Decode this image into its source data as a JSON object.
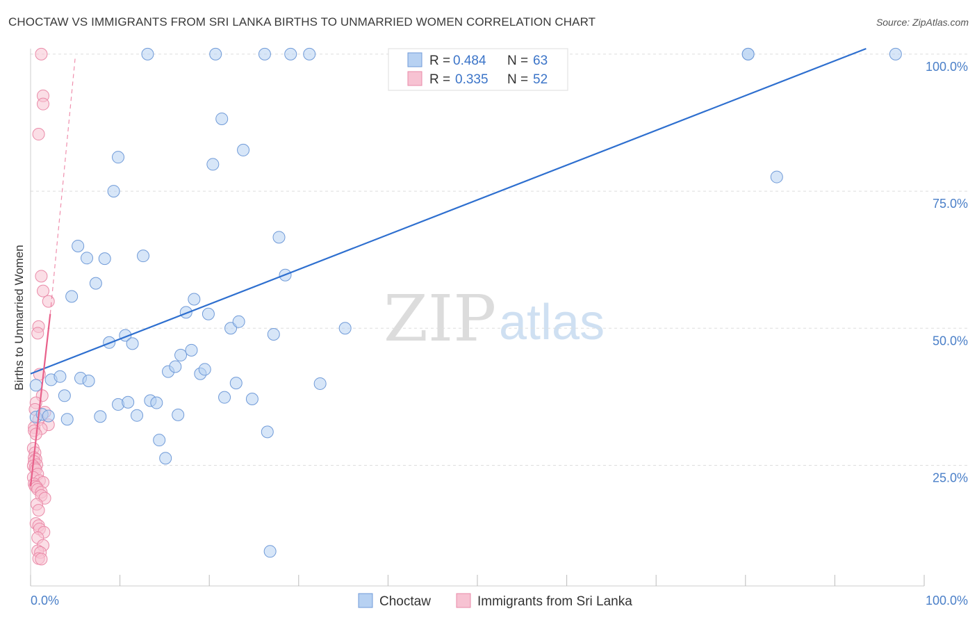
{
  "header": {
    "title": "CHOCTAW VS IMMIGRANTS FROM SRI LANKA BIRTHS TO UNMARRIED WOMEN CORRELATION CHART",
    "source": "Source: ZipAtlas.com"
  },
  "watermark": {
    "zip": "ZIP",
    "atlas": "atlas"
  },
  "colors": {
    "blue_fill": "#b7d1f2",
    "blue_stroke": "#6f9ad8",
    "blue_line": "#2e6fcf",
    "pink_fill": "#f7c2d2",
    "pink_stroke": "#ea8aa8",
    "pink_line": "#e8608a",
    "grid": "#dddddd",
    "tick_text": "#4a7fc8"
  },
  "legend": {
    "rows": [
      {
        "r_label": "R =",
        "r_value": "0.484",
        "n_label": "N =",
        "n_value": "63"
      },
      {
        "r_label": "R =",
        "r_value": "0.335",
        "n_label": "N =",
        "n_value": "52"
      }
    ]
  },
  "chart_data": {
    "type": "scatter",
    "title": "CHOCTAW VS IMMIGRANTS FROM SRI LANKA BIRTHS TO UNMARRIED WOMEN CORRELATION CHART",
    "xlabel": "",
    "ylabel": "Births to Unmarried Women",
    "xlim": [
      0,
      100
    ],
    "ylim": [
      3,
      101
    ],
    "x_tick_labels": [
      "0.0%",
      "100.0%"
    ],
    "y_ticks": [
      25,
      50,
      75,
      100
    ],
    "y_tick_labels": [
      "25.0%",
      "50.0%",
      "75.0%",
      "100.0%"
    ],
    "grid": true,
    "series": [
      {
        "name": "Choctaw",
        "color": "blue",
        "r": 0.484,
        "n": 63,
        "trend": {
          "x": [
            0,
            93.5
          ],
          "y": [
            41.7,
            101
          ]
        },
        "points": [
          [
            0.6,
            33.8
          ],
          [
            0.6,
            39.6
          ],
          [
            1.3,
            34.3
          ],
          [
            2.0,
            34.0
          ],
          [
            2.3,
            40.6
          ],
          [
            3.3,
            41.2
          ],
          [
            3.8,
            37.7
          ],
          [
            4.1,
            33.4
          ],
          [
            4.6,
            55.8
          ],
          [
            5.3,
            65.0
          ],
          [
            5.6,
            40.9
          ],
          [
            6.5,
            40.4
          ],
          [
            6.3,
            62.8
          ],
          [
            7.3,
            58.2
          ],
          [
            7.8,
            33.9
          ],
          [
            8.3,
            62.7
          ],
          [
            8.8,
            47.4
          ],
          [
            9.3,
            75.0
          ],
          [
            9.8,
            81.2
          ],
          [
            9.8,
            36.1
          ],
          [
            10.6,
            48.7
          ],
          [
            10.9,
            36.5
          ],
          [
            11.4,
            47.2
          ],
          [
            11.9,
            34.1
          ],
          [
            12.6,
            63.2
          ],
          [
            13.1,
            100.0
          ],
          [
            13.4,
            36.8
          ],
          [
            14.1,
            36.4
          ],
          [
            14.4,
            29.6
          ],
          [
            15.1,
            26.3
          ],
          [
            15.4,
            42.1
          ],
          [
            16.2,
            43.0
          ],
          [
            16.5,
            34.2
          ],
          [
            16.8,
            45.1
          ],
          [
            17.4,
            52.9
          ],
          [
            18.0,
            46.0
          ],
          [
            18.3,
            55.3
          ],
          [
            19.0,
            41.7
          ],
          [
            19.5,
            42.5
          ],
          [
            19.9,
            52.6
          ],
          [
            20.4,
            79.9
          ],
          [
            20.7,
            100.0
          ],
          [
            21.4,
            88.2
          ],
          [
            21.7,
            37.4
          ],
          [
            22.4,
            50.0
          ],
          [
            23.0,
            40.0
          ],
          [
            23.3,
            51.2
          ],
          [
            23.8,
            82.5
          ],
          [
            24.8,
            37.1
          ],
          [
            26.2,
            100.0
          ],
          [
            26.5,
            31.1
          ],
          [
            26.8,
            9.3
          ],
          [
            27.2,
            48.9
          ],
          [
            27.8,
            66.6
          ],
          [
            28.5,
            59.7
          ],
          [
            29.1,
            100.0
          ],
          [
            31.2,
            100.0
          ],
          [
            32.4,
            39.9
          ],
          [
            35.2,
            50.0
          ],
          [
            80.3,
            100.0
          ],
          [
            80.3,
            100.0
          ],
          [
            83.5,
            77.6
          ],
          [
            96.8,
            100.0
          ]
        ]
      },
      {
        "name": "Immigrants from Sri Lanka",
        "color": "pink",
        "r": 0.335,
        "n": 52,
        "trend": {
          "x": [
            0.0,
            2.2
          ],
          "y": [
            21.2,
            52.6
          ]
        },
        "trend_dashed": {
          "x": [
            2.2,
            5.0
          ],
          "y": [
            52.6,
            99.5
          ]
        },
        "points": [
          [
            1.2,
            100.0
          ],
          [
            1.4,
            92.4
          ],
          [
            1.4,
            90.9
          ],
          [
            0.9,
            85.4
          ],
          [
            1.2,
            59.5
          ],
          [
            1.4,
            56.8
          ],
          [
            2.0,
            54.9
          ],
          [
            0.9,
            50.3
          ],
          [
            0.8,
            49.1
          ],
          [
            1.0,
            41.6
          ],
          [
            1.3,
            37.7
          ],
          [
            0.6,
            36.4
          ],
          [
            0.5,
            35.2
          ],
          [
            1.6,
            34.7
          ],
          [
            0.9,
            33.3
          ],
          [
            2.0,
            32.4
          ],
          [
            0.4,
            31.9
          ],
          [
            1.2,
            31.7
          ],
          [
            0.4,
            31.3
          ],
          [
            0.6,
            30.7
          ],
          [
            0.3,
            28.1
          ],
          [
            0.5,
            27.3
          ],
          [
            0.4,
            26.4
          ],
          [
            0.6,
            26.1
          ],
          [
            0.4,
            25.7
          ],
          [
            0.7,
            25.1
          ],
          [
            0.3,
            24.9
          ],
          [
            0.5,
            24.5
          ],
          [
            0.6,
            24.2
          ],
          [
            0.8,
            23.4
          ],
          [
            0.3,
            22.8
          ],
          [
            1.0,
            22.2
          ],
          [
            1.4,
            21.9
          ],
          [
            0.4,
            21.6
          ],
          [
            0.5,
            21.2
          ],
          [
            0.7,
            21.0
          ],
          [
            0.8,
            20.6
          ],
          [
            1.2,
            20.1
          ],
          [
            1.2,
            19.5
          ],
          [
            1.6,
            19.0
          ],
          [
            0.7,
            17.9
          ],
          [
            0.9,
            16.8
          ],
          [
            0.6,
            14.4
          ],
          [
            0.9,
            14.0
          ],
          [
            1.0,
            13.4
          ],
          [
            1.5,
            12.8
          ],
          [
            0.8,
            11.8
          ],
          [
            1.4,
            10.4
          ],
          [
            0.8,
            9.4
          ],
          [
            1.1,
            9.1
          ],
          [
            0.9,
            8.0
          ],
          [
            1.2,
            7.9
          ]
        ]
      }
    ]
  }
}
